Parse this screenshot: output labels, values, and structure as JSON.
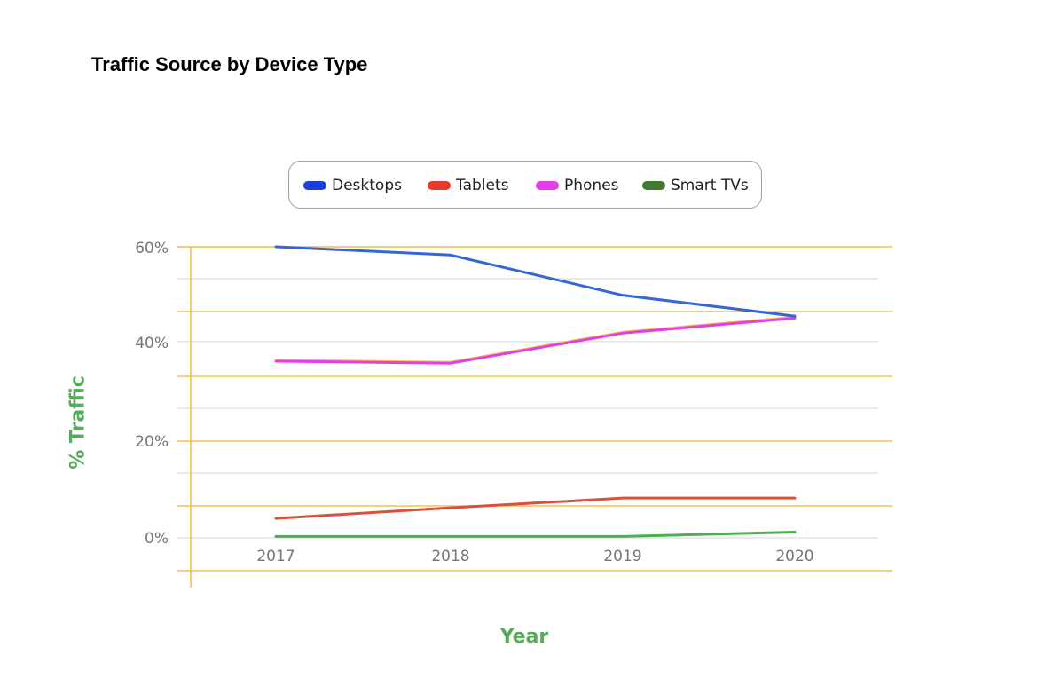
{
  "chart_data": {
    "type": "line",
    "title": "Traffic Source by Device Type",
    "xlabel": "Year",
    "ylabel": "% Traffic",
    "categories": [
      "2017",
      "2018",
      "2019",
      "2020"
    ],
    "y_ticks": [
      "0%",
      "20%",
      "40%",
      "60%"
    ],
    "ylim": [
      0,
      60
    ],
    "grid": true,
    "legend_position": "top",
    "series": [
      {
        "name": "Desktops",
        "color": "#3367d6",
        "legend_color": "#1a3fe0",
        "values": [
          60,
          58.3,
          50,
          45.7
        ]
      },
      {
        "name": "Tablets",
        "color": "#d9503f",
        "legend_color": "#e83a2a",
        "values": [
          4,
          6.2,
          8.2,
          8.2
        ]
      },
      {
        "name": "Phones",
        "color": "#e040e6",
        "legend_color": "#e040e6",
        "values": [
          36.4,
          36,
          42.2,
          45.3
        ]
      },
      {
        "name": "Smart TVs",
        "color": "#4caf50",
        "legend_color": "#3e7a2f",
        "values": [
          0.3,
          0.3,
          0.3,
          1.2
        ]
      }
    ]
  }
}
